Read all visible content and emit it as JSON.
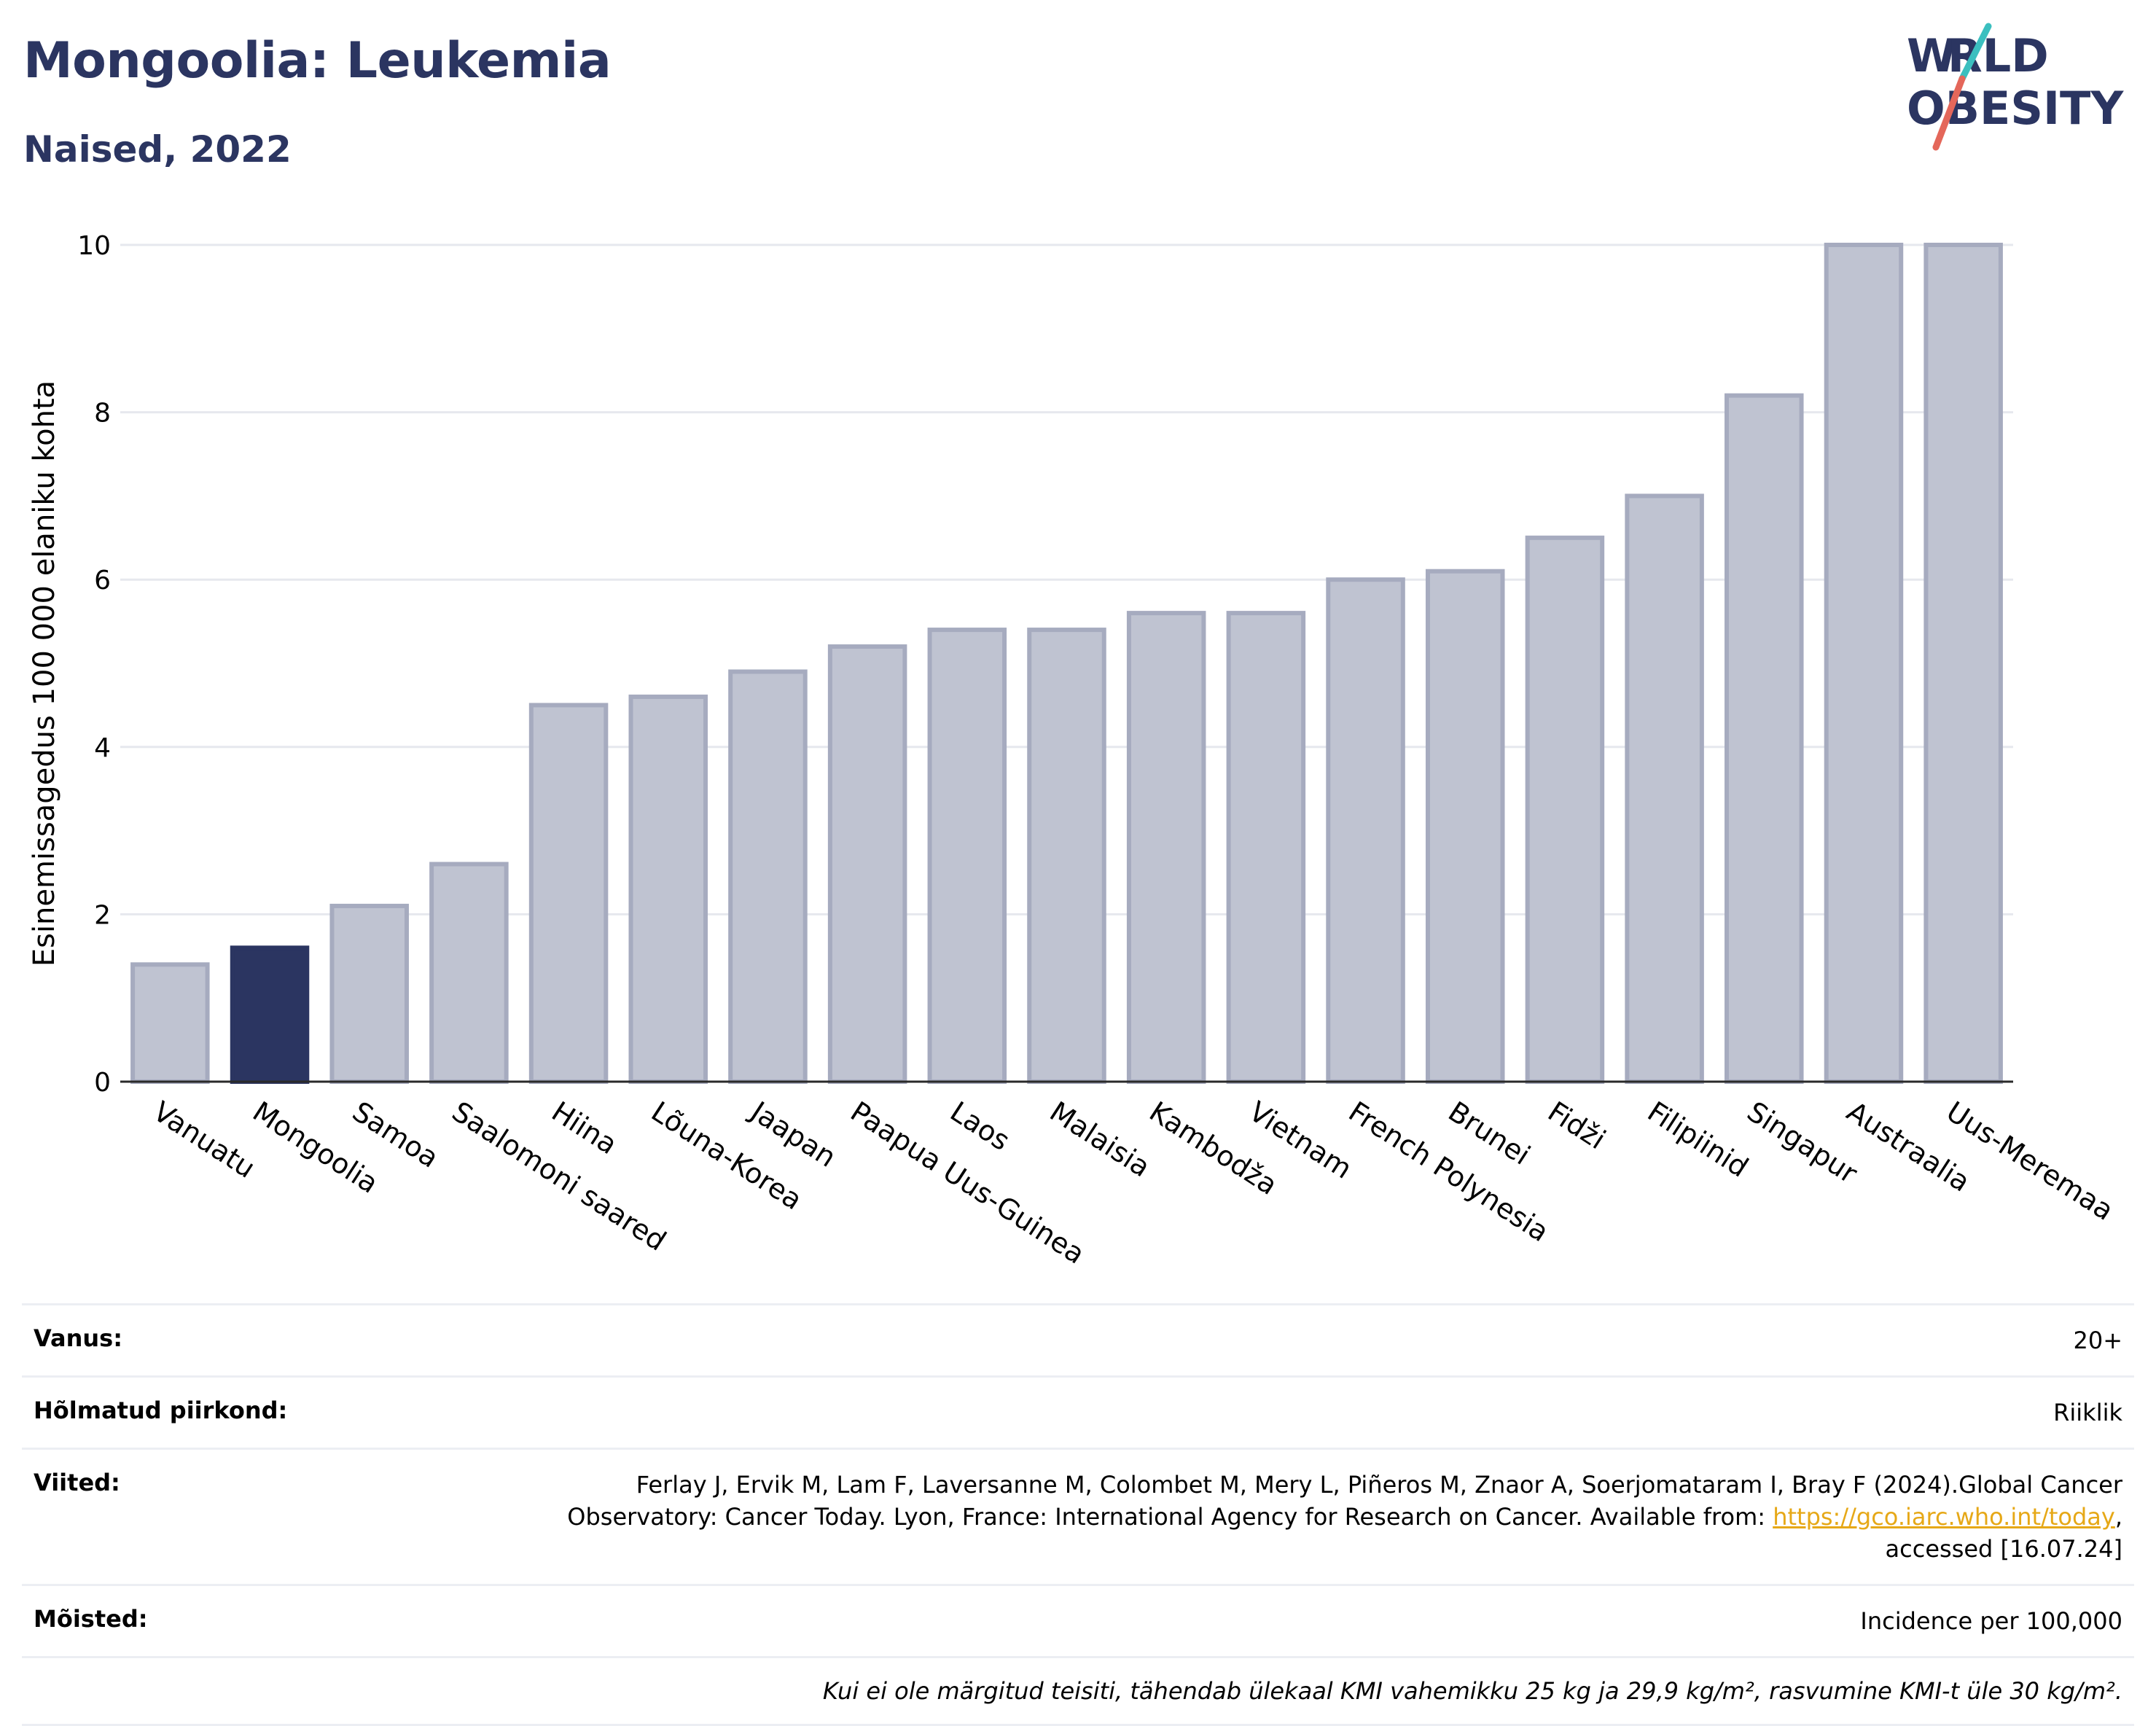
{
  "header": {
    "title": "Mongoolia: Leukemia",
    "subtitle": "Naised, 2022",
    "logo_text": "WORLD OBESITY"
  },
  "colors": {
    "highlight": "#2b3561",
    "bar_fill": "#bfc3d1",
    "bar_stroke": "#a6abbf",
    "grid": "#e6e8ee",
    "link": "#e6a817"
  },
  "chart_data": {
    "type": "bar",
    "ylabel": "Esinemissagedus 100 000 elaniku kohta",
    "ylim": [
      0,
      10
    ],
    "yticks": [
      0,
      2,
      4,
      6,
      8,
      10
    ],
    "grid": true,
    "highlight_category": "Mongoolia",
    "categories": [
      "Vanuatu",
      "Mongoolia",
      "Samoa",
      "Saalomoni saared",
      "Hiina",
      "Lõuna-Korea",
      "Jaapan",
      "Paapua Uus-Guinea",
      "Laos",
      "Malaisia",
      "Kambodža",
      "Vietnam",
      "French Polynesia",
      "Brunei",
      "Fidži",
      "Filipiinid",
      "Singapur",
      "Austraalia",
      "Uus-Meremaa"
    ],
    "values": [
      1.4,
      1.6,
      2.1,
      2.6,
      4.5,
      4.6,
      4.9,
      5.2,
      5.4,
      5.4,
      5.6,
      5.6,
      6.0,
      6.1,
      6.5,
      7.0,
      8.2,
      10.0,
      10.0
    ]
  },
  "info": {
    "age_label": "Vanus:",
    "age_value": "20+",
    "region_label": "Hõlmatud piirkond:",
    "region_value": "Riiklik",
    "refs_label": "Viited:",
    "refs_line1": "Ferlay J, Ervik M, Lam F, Laversanne M, Colombet M, Mery L, Piñeros M, Znaor A, Soerjomataram I, Bray F (2024).Global Cancer",
    "refs_line2": "Observatory: Cancer Today. Lyon, France: International Agency for Research on Cancer. Available from: ",
    "refs_link": "https://gco.iarc.who.int/today",
    "refs_line2_end": ",",
    "refs_line3": "accessed [16.07.24]",
    "def_label": "Mõisted:",
    "def_value": "Incidence per 100,000",
    "note": "Kui ei ole märgitud teisiti, tähendab ülekaal KMI vahemikku 25 kg ja 29,9 kg/m², rasvumine KMI-t üle 30 kg/m²."
  }
}
